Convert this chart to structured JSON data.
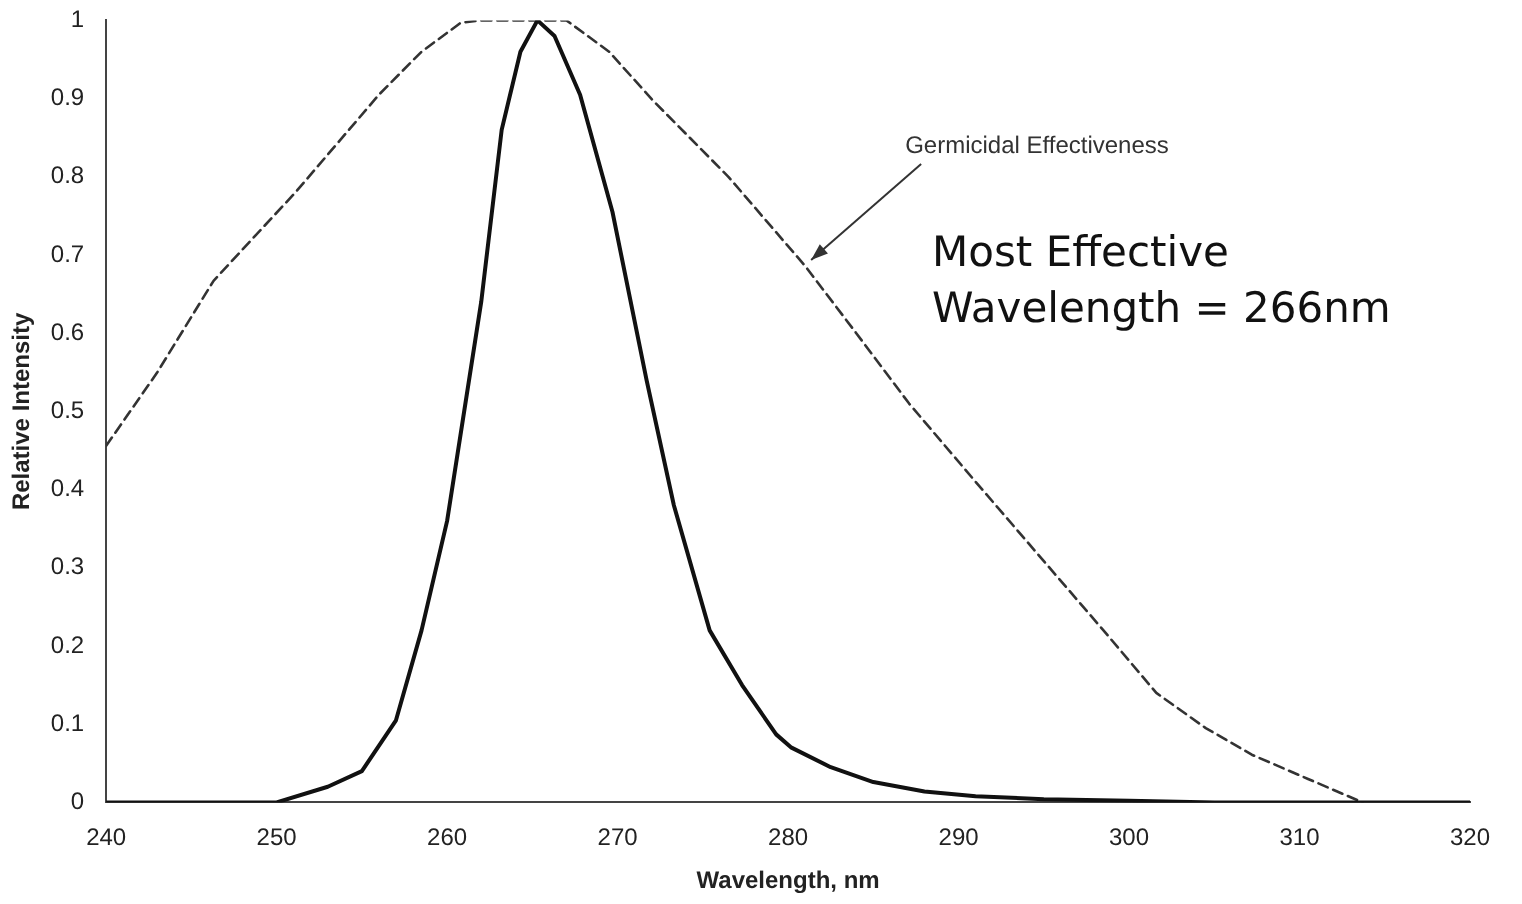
{
  "chart_data": {
    "type": "line",
    "xlabel": "Wavelength, nm",
    "ylabel": "Relative Intensity",
    "xlim": [
      240,
      320
    ],
    "xticks": [
      240,
      250,
      260,
      270,
      280,
      290,
      300,
      310,
      320
    ],
    "ylim": [
      0,
      1
    ],
    "yticks": [
      0,
      0.1,
      0.2,
      0.3,
      0.4,
      0.5,
      0.6,
      0.7,
      0.8,
      0.9,
      1
    ],
    "grid": false,
    "legend": false,
    "marker": "none",
    "series": [
      {
        "color": "#111111",
        "line_style": "solid",
        "x": [
          240,
          250,
          253,
          255,
          257,
          258.5,
          260,
          261,
          262,
          263.2,
          264.3,
          265.3,
          266.3,
          267.8,
          269.7,
          271.7,
          273.3,
          275.4,
          277.3,
          279.3,
          280.2,
          282.5,
          285,
          288,
          291,
          295,
          300,
          305,
          320
        ],
        "values": [
          0,
          0,
          0.02,
          0.04,
          0.105,
          0.22,
          0.36,
          0.5,
          0.64,
          0.86,
          0.96,
          1,
          0.98,
          0.905,
          0.755,
          0.54,
          0.38,
          0.22,
          0.15,
          0.087,
          0.07,
          0.045,
          0.026,
          0.014,
          0.008,
          0.004,
          0.002,
          0,
          0
        ]
      },
      {
        "color": "#333333",
        "line_style": "dashed",
        "x": [
          240,
          243,
          246.3,
          251.1,
          256,
          258.5,
          260.8,
          262,
          267,
          269.5,
          272.1,
          276.5,
          281,
          284,
          287.1,
          291,
          295.1,
          298.5,
          301.6,
          304.5,
          307.2,
          310.5,
          313.7
        ],
        "values": [
          0.456,
          0.55,
          0.667,
          0.78,
          0.905,
          0.96,
          0.997,
          1,
          1,
          0.96,
          0.897,
          0.8,
          0.686,
          0.6,
          0.51,
          0.41,
          0.306,
          0.22,
          0.14,
          0.095,
          0.061,
          0.03,
          0
        ]
      }
    ],
    "annotations": [
      {
        "text": "Germicidal Effectiveness",
        "x": 281,
        "y": 0.686
      },
      "Most Effective Wavelength = 266nm"
    ]
  }
}
